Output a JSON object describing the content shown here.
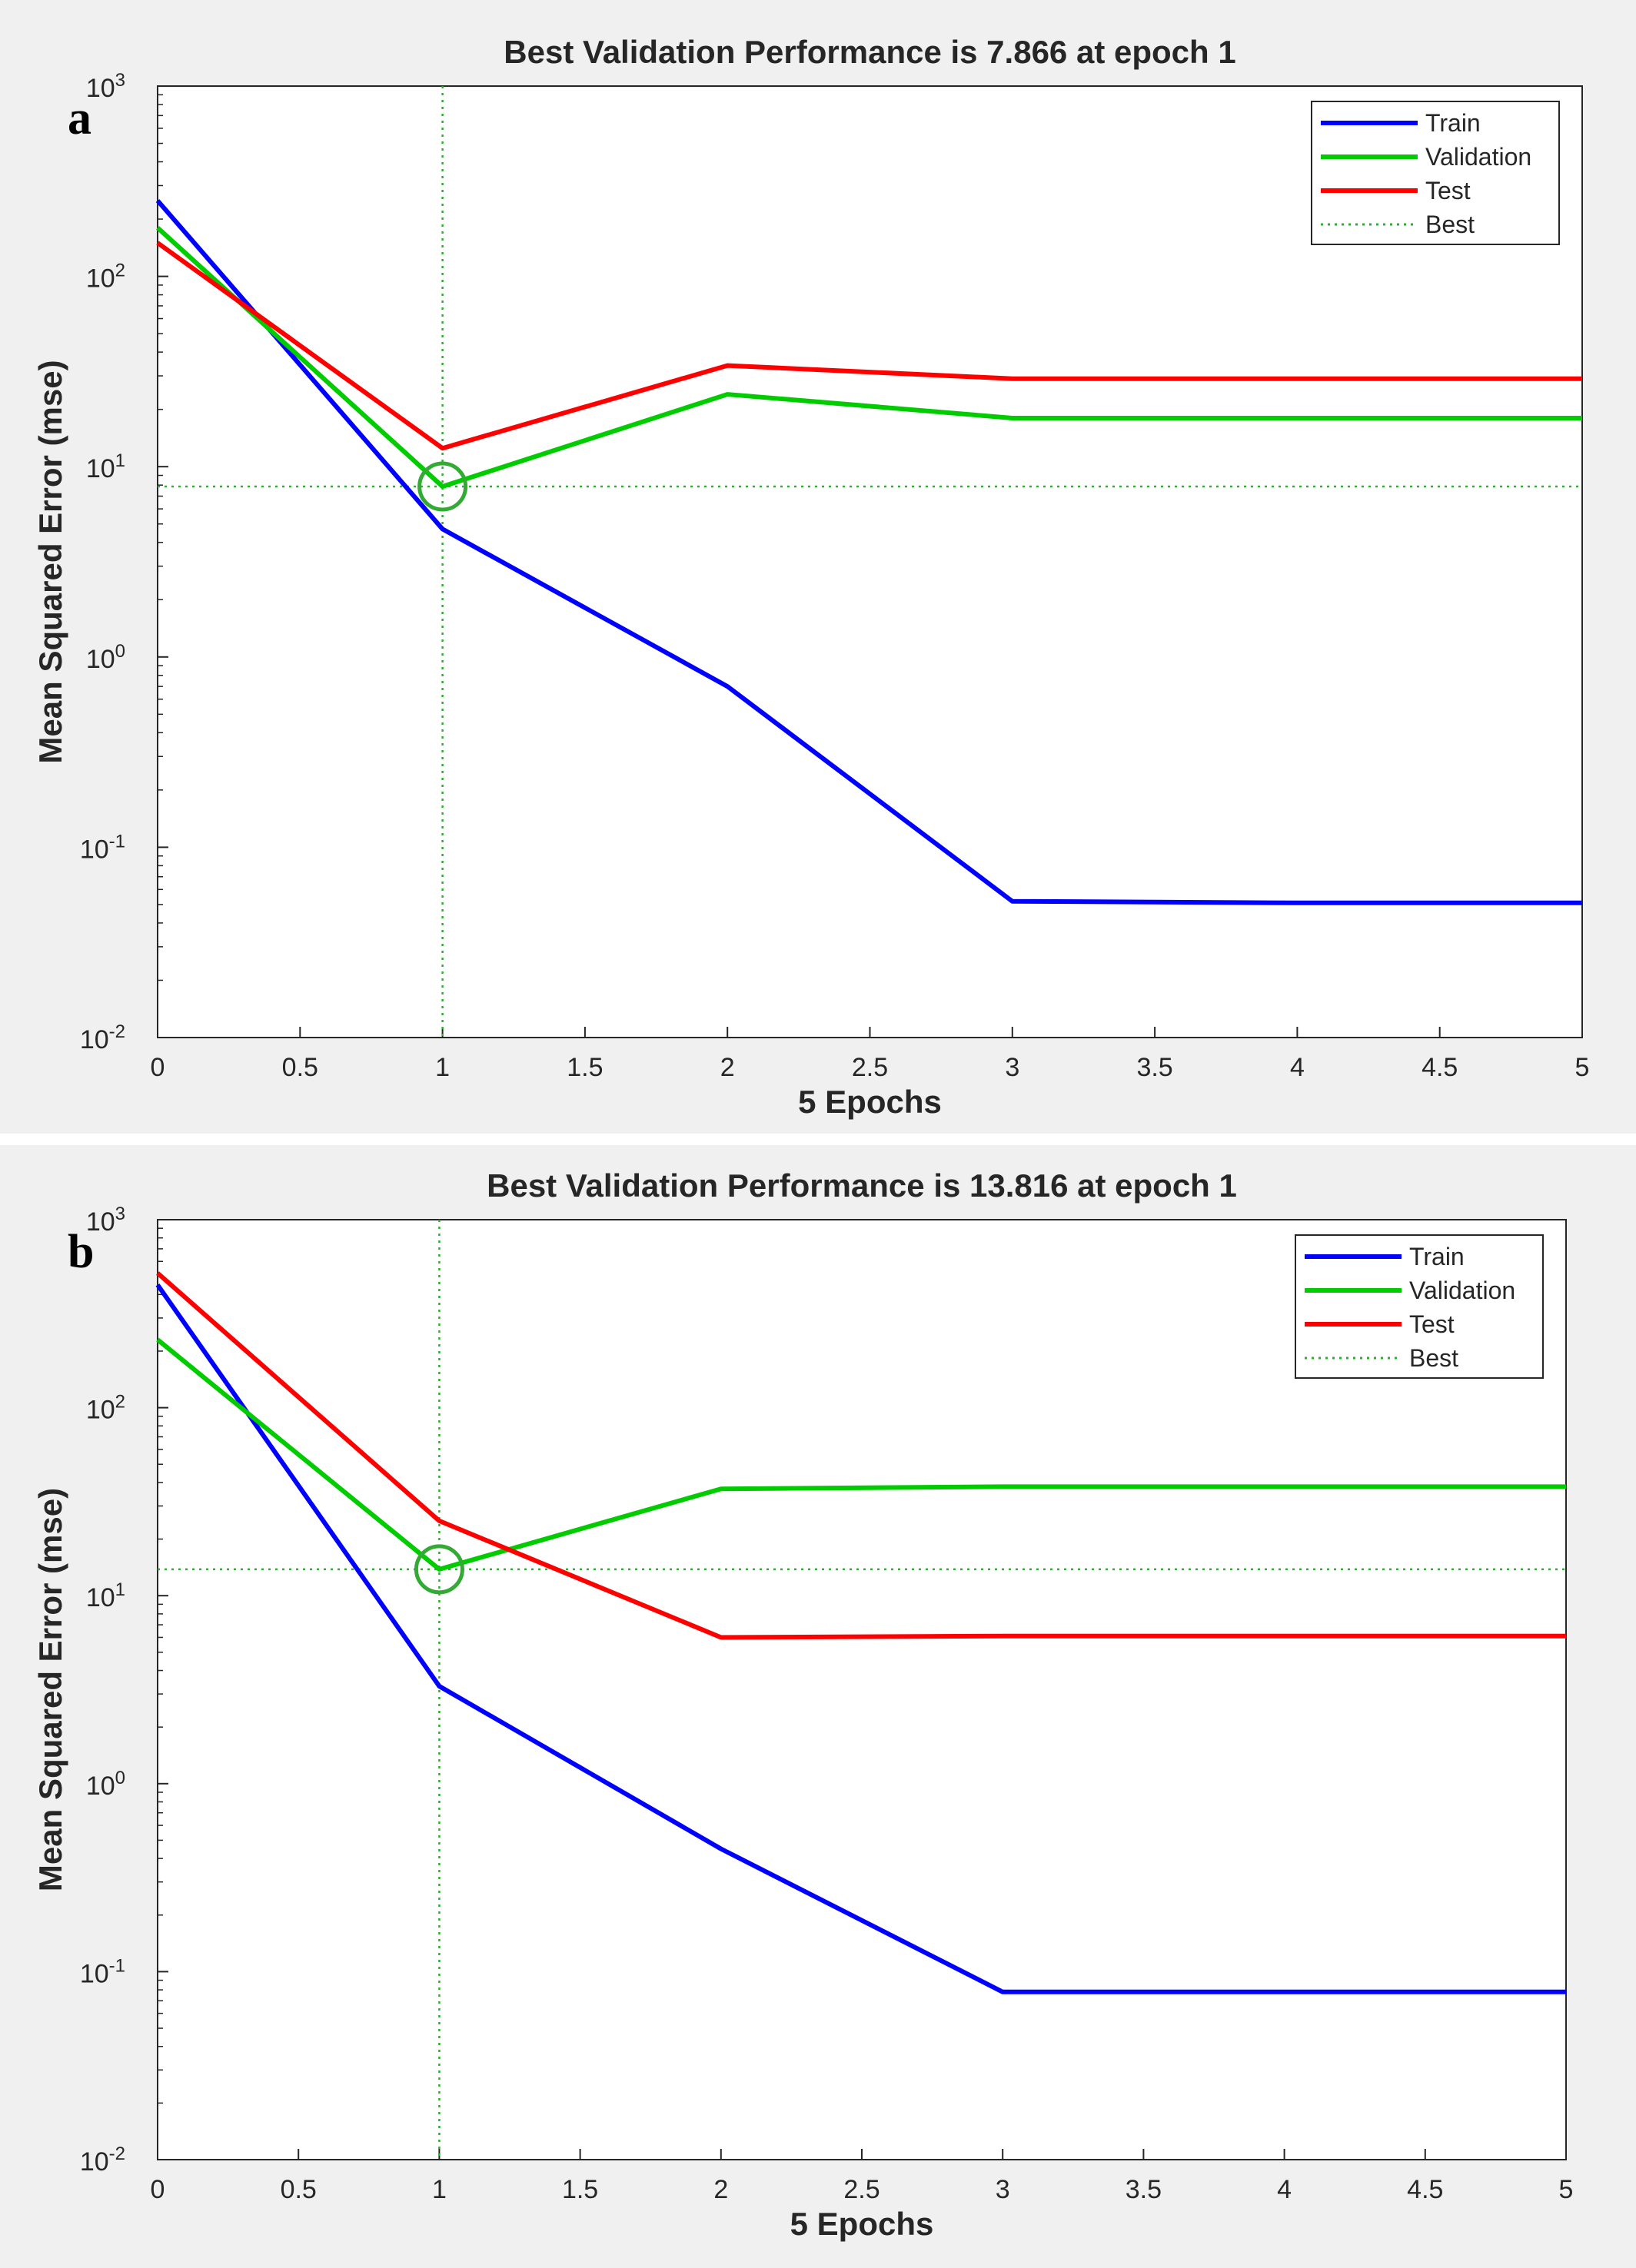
{
  "colors": {
    "train": "#0000ff",
    "validation": "#00cc00",
    "test": "#ff0000",
    "best": "#33aa33",
    "axes": "#262626",
    "background": "#f0f0f0"
  },
  "chart_data": [
    {
      "type": "line",
      "panel_label": "a",
      "title": "Best Validation Performance is 7.866 at epoch 1",
      "xlabel": "5 Epochs",
      "ylabel": "Mean Squared Error  (mse)",
      "xlim": [
        0,
        5
      ],
      "ylim": [
        0.01,
        1000
      ],
      "yscale": "log",
      "grid": false,
      "legend_position": "top-right",
      "xticks": [
        "0",
        "0.5",
        "1",
        "1.5",
        "2",
        "2.5",
        "3",
        "3.5",
        "4",
        "4.5",
        "5"
      ],
      "yticks": [
        {
          "base": "10",
          "exp": "3",
          "value": 1000
        },
        {
          "base": "10",
          "exp": "2",
          "value": 100
        },
        {
          "base": "10",
          "exp": "1",
          "value": 10
        },
        {
          "base": "10",
          "exp": "0",
          "value": 1
        },
        {
          "base": "10",
          "exp": "-1",
          "value": 0.1
        },
        {
          "base": "10",
          "exp": "-2",
          "value": 0.01
        }
      ],
      "x": [
        0,
        1,
        2,
        3,
        4,
        5
      ],
      "series": [
        {
          "name": "Train",
          "color_key": "train",
          "values": [
            250,
            4.7,
            0.7,
            0.052,
            0.051,
            0.051
          ]
        },
        {
          "name": "Validation",
          "color_key": "validation",
          "values": [
            180,
            7.866,
            24,
            18,
            18,
            18
          ]
        },
        {
          "name": "Test",
          "color_key": "test",
          "values": [
            150,
            12.5,
            34,
            29,
            29,
            29
          ]
        }
      ],
      "best": {
        "name": "Best",
        "epoch": 1,
        "value": 7.866
      }
    },
    {
      "type": "line",
      "panel_label": "b",
      "title": "Best Validation Performance is 13.816 at epoch 1",
      "xlabel": "5 Epochs",
      "ylabel": "Mean Squared Error  (mse)",
      "xlim": [
        0,
        5
      ],
      "ylim": [
        0.01,
        1000
      ],
      "yscale": "log",
      "grid": false,
      "legend_position": "top-right",
      "xticks": [
        "0",
        "0.5",
        "1",
        "1.5",
        "2",
        "2.5",
        "3",
        "3.5",
        "4",
        "4.5",
        "5"
      ],
      "yticks": [
        {
          "base": "10",
          "exp": "3",
          "value": 1000
        },
        {
          "base": "10",
          "exp": "2",
          "value": 100
        },
        {
          "base": "10",
          "exp": "1",
          "value": 10
        },
        {
          "base": "10",
          "exp": "0",
          "value": 1
        },
        {
          "base": "10",
          "exp": "-1",
          "value": 0.1
        },
        {
          "base": "10",
          "exp": "-2",
          "value": 0.01
        }
      ],
      "x": [
        0,
        1,
        2,
        3,
        4,
        5
      ],
      "series": [
        {
          "name": "Train",
          "color_key": "train",
          "values": [
            450,
            3.3,
            0.45,
            0.078,
            0.078,
            0.078
          ]
        },
        {
          "name": "Validation",
          "color_key": "validation",
          "values": [
            230,
            13.816,
            37,
            38,
            38,
            38
          ]
        },
        {
          "name": "Test",
          "color_key": "test",
          "values": [
            520,
            25,
            6,
            6.1,
            6.1,
            6.1
          ]
        }
      ],
      "best": {
        "name": "Best",
        "epoch": 1,
        "value": 13.816
      }
    }
  ]
}
